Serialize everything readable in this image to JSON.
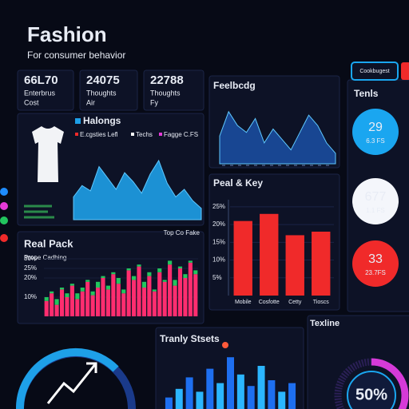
{
  "header": {
    "title": "Fashion",
    "subtitle": "For consumer behavior"
  },
  "kpis": [
    {
      "value": "66L70",
      "label": "Enterbrus",
      "sub": "Cost"
    },
    {
      "value": "24075",
      "label": "Thoughts",
      "sub": "Air"
    },
    {
      "value": "22788",
      "label": "Thoughts",
      "sub": "Fy"
    }
  ],
  "halongs": {
    "title": "Halongs",
    "legend": [
      "E.cgsties Lefl",
      "Techs",
      "Fagge C.FS"
    ],
    "color": "#1ea0e8",
    "ylim": [
      0,
      100
    ],
    "values": [
      30,
      45,
      38,
      70,
      55,
      40,
      62,
      50,
      35,
      60,
      78,
      48,
      30,
      40,
      25,
      15
    ]
  },
  "feelbcdg": {
    "title": "Feelbcdg",
    "color": "#1a4d9e",
    "ylim": [
      0,
      100
    ],
    "values": [
      40,
      75,
      55,
      45,
      65,
      30,
      50,
      35,
      20,
      45,
      70,
      55,
      30,
      15
    ]
  },
  "peal_key": {
    "title": "Peal & Key",
    "color": "#f02a2a",
    "ylim": [
      0,
      27
    ],
    "yticks": [
      {
        "value": 25,
        "label": "25%"
      },
      {
        "value": 20,
        "label": "20%"
      },
      {
        "value": 15,
        "label": "15%"
      },
      {
        "value": 10,
        "label": "10%"
      },
      {
        "value": 5,
        "label": "5%"
      }
    ],
    "categories": [
      "Mobile",
      "Cosfotte",
      "Cetty",
      "Tioscs"
    ],
    "values": [
      21,
      23,
      17,
      18
    ]
  },
  "real_pack": {
    "title": "Real Pack",
    "subtitle": "Prope Cadhing",
    "note": "Top Co Fake",
    "ylim": [
      0,
      35
    ],
    "yticks": [
      {
        "value": 30,
        "label": "30%"
      },
      {
        "value": 25,
        "label": "25%"
      },
      {
        "value": 20,
        "label": "20%"
      },
      {
        "value": 10,
        "label": "10%"
      }
    ],
    "series": [
      {
        "color": "#ff2d6f",
        "values": [
          8,
          12,
          6,
          14,
          10,
          16,
          9,
          13,
          18,
          11,
          15,
          20,
          14,
          22,
          17,
          12,
          24,
          19,
          26,
          15,
          21,
          13,
          23,
          18,
          27,
          16,
          25,
          20,
          28,
          22
        ]
      },
      {
        "color": "#22c55e",
        "values": [
          2,
          1,
          3,
          1,
          2,
          1,
          3,
          2,
          1,
          2,
          3,
          1,
          2,
          1,
          3,
          2,
          1,
          2,
          1,
          3,
          2,
          1,
          2,
          1,
          2,
          3,
          1,
          2,
          1,
          2
        ]
      }
    ]
  },
  "tranly": {
    "title": "Tranly Stsets",
    "colors": [
      "#1e6ff0",
      "#2bb6ff"
    ],
    "ylim": [
      0,
      100
    ],
    "values": [
      20,
      35,
      55,
      30,
      70,
      45,
      90,
      60,
      40,
      75,
      50,
      30,
      45
    ]
  },
  "texline": {
    "title": "Texline",
    "gauge": {
      "value": 50,
      "label": "50%"
    }
  },
  "sidebar": {
    "button": "Cookbugest",
    "title": "Tenls",
    "circles": [
      {
        "value": "29",
        "label": "6.3 FS",
        "color": "#1aa6f0",
        "text": "#0a1a33"
      },
      {
        "value": "677",
        "label": "1.1 FS",
        "color": "#f4f6fb",
        "text": "#0a1a33"
      },
      {
        "value": "33",
        "label": "23.7FS",
        "color": "#f02a2a",
        "text": "#ffffff"
      }
    ]
  }
}
